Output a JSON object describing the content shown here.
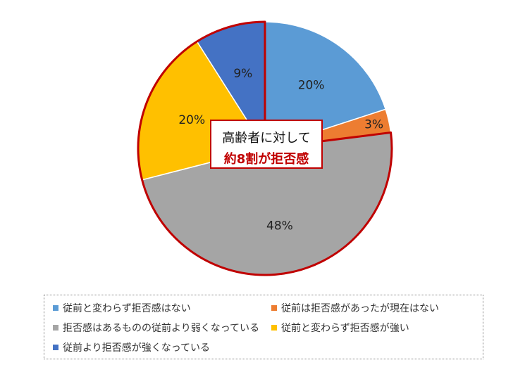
{
  "chart_data": {
    "type": "pie",
    "categories": [
      "従前と変わらず拒否感はない",
      "従前は拒否感があったが現在はない",
      "拒否感はあるものの従前より弱くなっている",
      "従前と変わらず拒否感が強い",
      "従前より拒否感が強くなっている"
    ],
    "values": [
      20,
      3,
      48,
      20,
      9
    ],
    "labels": [
      "20%",
      "3%",
      "48%",
      "20%",
      "9%"
    ],
    "colors": [
      "#5b9bd5",
      "#ed7d31",
      "#a5a5a5",
      "#ffc000",
      "#4472c4"
    ],
    "highlighted": [
      false,
      false,
      true,
      true,
      true
    ],
    "highlight_color": "#c00000",
    "legend_placement": "bottom"
  },
  "callout": {
    "line1": "高齢者に対して",
    "line2": "約8割が拒否感"
  }
}
